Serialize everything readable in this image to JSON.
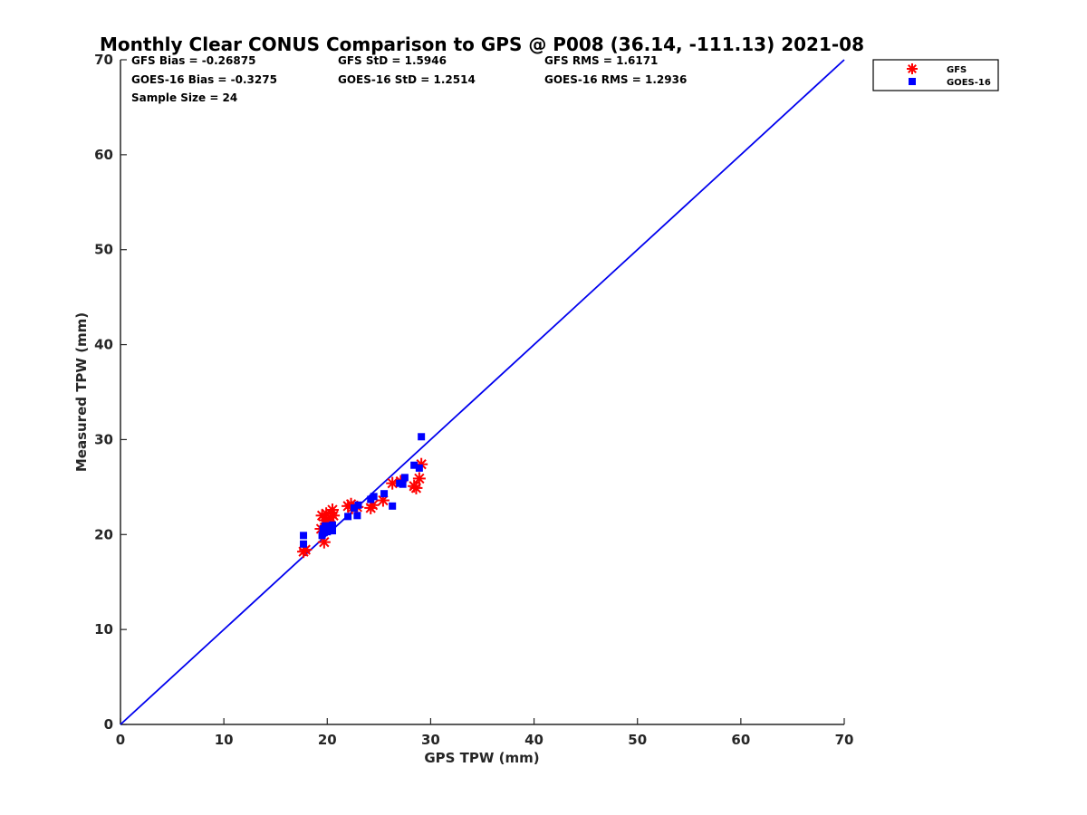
{
  "chart_data": {
    "type": "scatter",
    "title": "Monthly Clear CONUS Comparison to GPS @ P008 (36.14, -111.13) 2021-08",
    "xlabel": "GPS TPW (mm)",
    "ylabel": "Measured TPW (mm)",
    "xlim": [
      0,
      70
    ],
    "ylim": [
      0,
      70
    ],
    "xticks": [
      "0",
      "10",
      "20",
      "30",
      "40",
      "50",
      "60",
      "70"
    ],
    "yticks": [
      "0",
      "10",
      "20",
      "30",
      "40",
      "50",
      "60",
      "70"
    ],
    "grid": false,
    "legend_position": "outside top-right",
    "stats": [
      "GFS Bias = -0.26875",
      "GFS StD = 1.5946",
      "GFS RMS = 1.6171",
      "GOES-16 Bias = -0.3275",
      "GOES-16 StD = 1.2514",
      "GOES-16 RMS = 1.2936",
      "Sample Size = 24"
    ],
    "reference_line": {
      "x": [
        0,
        70
      ],
      "y": [
        0,
        70
      ],
      "color": "#0000ee"
    },
    "series": [
      {
        "name": "GFS",
        "marker": "asterisk",
        "color": "#ff0000",
        "x": [
          17.7,
          17.9,
          19.4,
          19.5,
          19.7,
          19.8,
          19.9,
          20.1,
          20.3,
          20.5,
          20.6,
          22.0,
          22.3,
          22.4,
          22.9,
          24.2,
          24.4,
          25.4,
          26.3,
          27.1,
          28.4,
          28.6,
          28.9,
          29.1
        ],
        "y": [
          18.2,
          18.4,
          20.6,
          22.0,
          19.2,
          21.5,
          22.2,
          21.0,
          21.8,
          22.6,
          22.0,
          23.0,
          23.2,
          22.8,
          22.9,
          22.8,
          23.1,
          23.6,
          25.4,
          25.6,
          25.1,
          24.9,
          25.9,
          27.4
        ]
      },
      {
        "name": "GOES-16",
        "marker": "square",
        "color": "#0000ff",
        "x": [
          17.7,
          17.7,
          19.5,
          19.6,
          19.8,
          20.0,
          20.2,
          20.5,
          20.5,
          22.0,
          22.6,
          22.9,
          23.0,
          24.2,
          24.5,
          25.5,
          26.3,
          27.0,
          27.3,
          27.5,
          28.4,
          28.9,
          29.1,
          19.7
        ],
        "y": [
          19.0,
          19.9,
          19.9,
          20.6,
          20.9,
          20.3,
          20.9,
          20.4,
          21.0,
          21.9,
          22.8,
          22.0,
          23.1,
          23.7,
          24.0,
          24.3,
          23.0,
          25.4,
          25.3,
          26.0,
          27.3,
          27.0,
          30.3,
          20.2
        ]
      }
    ]
  }
}
